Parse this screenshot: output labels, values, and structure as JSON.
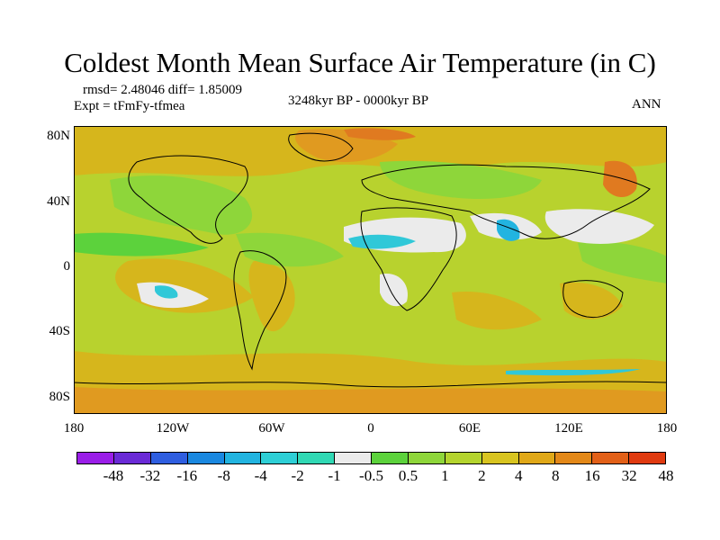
{
  "title": "Coldest Month Mean Surface Air Temperature (in C)",
  "stats": "rmsd= 2.48046 diff= 1.85009",
  "expt": "Expt = tFmFy-tfmea",
  "period": "3248kyr BP - 0000kyr BP",
  "season": "ANN",
  "y_axis_labels": [
    "80N",
    "40N",
    "0",
    "40S",
    "80S"
  ],
  "x_axis_labels": [
    "180",
    "120W",
    "60W",
    "0",
    "60E",
    "120E",
    "180"
  ],
  "colorbar": {
    "labels": [
      "-48",
      "-32",
      "-16",
      "-8",
      "-4",
      "-2",
      "-1",
      "-0.5",
      "0.5",
      "1",
      "2",
      "4",
      "8",
      "16",
      "32",
      "48"
    ],
    "colors": [
      "#9a1ee8",
      "#6a2ad6",
      "#2f5ee0",
      "#1a88e0",
      "#22b4e0",
      "#2ecfd6",
      "#30d8b4",
      "#ebebeb",
      "#5cd23c",
      "#8ed63a",
      "#b4d42e",
      "#d8c420",
      "#e0a818",
      "#e38818",
      "#e26018",
      "#e03a10"
    ]
  },
  "map_colors": {
    "ocean_base": "#b8d22e",
    "warm": "#d6b61c",
    "warmer": "#e09a20",
    "hot": "#e07a20",
    "green": "#8ed63a",
    "cool_green": "#5cd23c",
    "neutral": "#ebebeb",
    "cool": "#30c8d8",
    "cyan": "#22b4e0"
  }
}
